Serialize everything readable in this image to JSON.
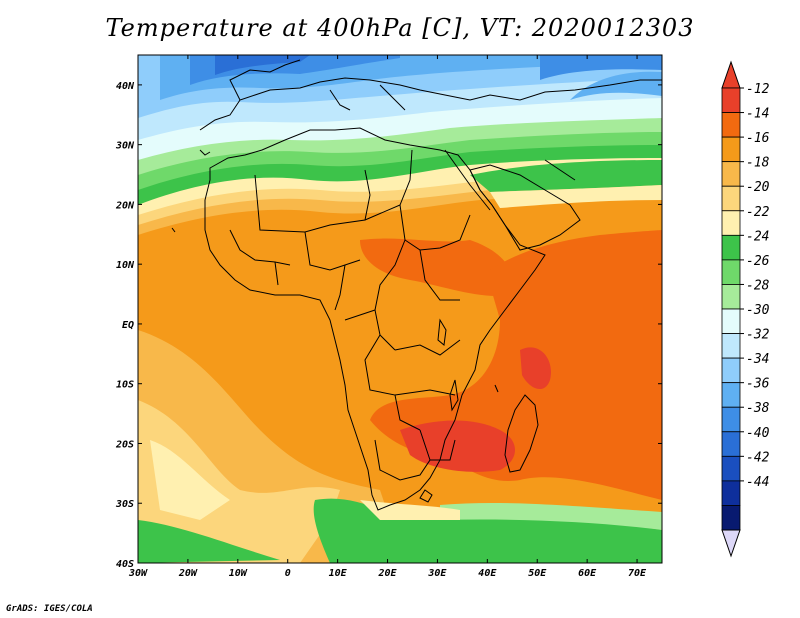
{
  "title": "Temperature at 400hPa [C], VT: 2020012303",
  "footer": "GrADS: IGES/COLA",
  "map": {
    "lat_ticks": [
      "40N",
      "30N",
      "20N",
      "10N",
      "EQ",
      "10S",
      "20S",
      "30S",
      "40S"
    ],
    "lon_ticks": [
      "30W",
      "20W",
      "10W",
      "0",
      "10E",
      "20E",
      "30E",
      "40E",
      "50E",
      "60E",
      "70E"
    ],
    "lat_range": [
      -40,
      45
    ],
    "lon_range": [
      -30,
      75
    ]
  },
  "colorbar": {
    "labels": [
      "-12",
      "-14",
      "-16",
      "-18",
      "-20",
      "-22",
      "-24",
      "-26",
      "-28",
      "-30",
      "-32",
      "-34",
      "-36",
      "-38",
      "-40",
      "-42",
      "-44"
    ],
    "colors": [
      "#e8402a",
      "#f26a10",
      "#f59a1a",
      "#f8b84a",
      "#fcd67c",
      "#fff0b0",
      "#3dc34a",
      "#6fd96a",
      "#a6eb9a",
      "#e4fcfc",
      "#bfe8fd",
      "#8fcdfb",
      "#5fb0f2",
      "#3e8ee6",
      "#2a6fd6",
      "#1a4fbf",
      "#0e2f9c",
      "#081a70"
    ],
    "top_arrow_color": "#e8402a",
    "bottom_arrow_color": "#ddd8f8"
  }
}
